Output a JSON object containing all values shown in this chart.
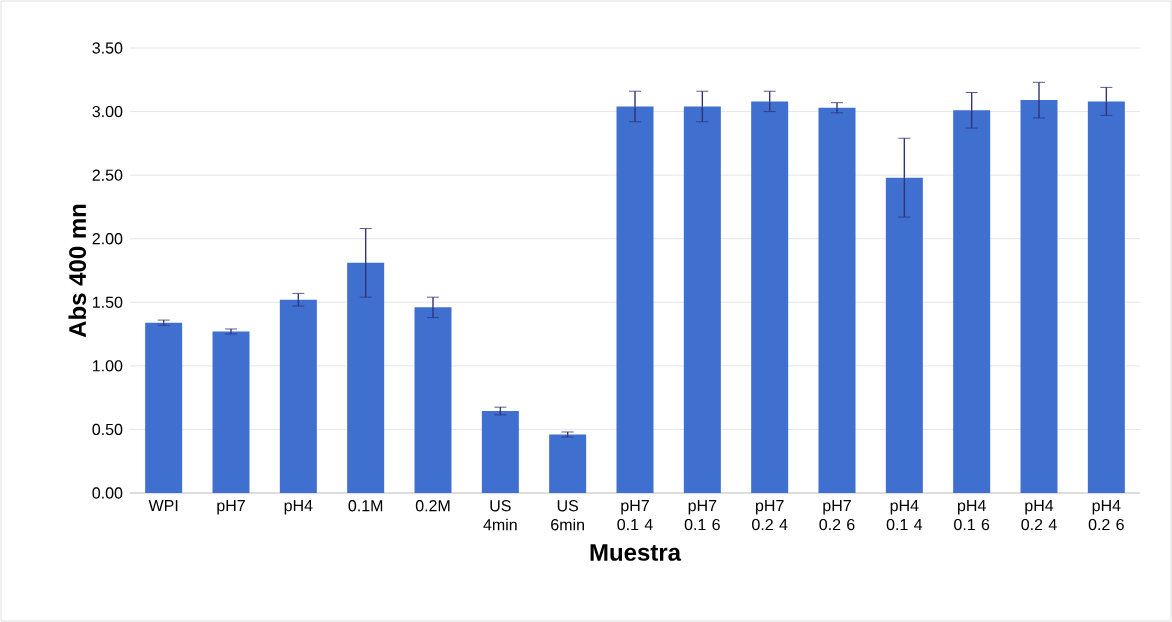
{
  "chart_data": {
    "type": "bar",
    "xlabel": "Muestra",
    "ylabel": "Abs 400 mn",
    "categories": [
      "WPI",
      "pH7",
      "pH4",
      "0.1M",
      "0.2M",
      "US 4min",
      "US 6min",
      "pH7 0.1 4",
      "pH7 0.1 6",
      "pH7 0.2 4",
      "pH7 0.2 6",
      "pH4 0.1 4",
      "pH4 0.1 6",
      "pH4 0.2 4",
      "pH4 0.2 6"
    ],
    "values": [
      1.34,
      1.27,
      1.52,
      1.81,
      1.46,
      0.645,
      0.46,
      3.04,
      3.04,
      3.08,
      3.03,
      2.48,
      3.01,
      3.09,
      3.08
    ],
    "errors": [
      0.02,
      0.02,
      0.05,
      0.27,
      0.08,
      0.03,
      0.02,
      0.12,
      0.12,
      0.08,
      0.04,
      0.31,
      0.14,
      0.14,
      0.11
    ],
    "color": "#3f6fcf",
    "ylim": [
      0,
      3.5
    ],
    "yticks": [
      {
        "value": 0,
        "label": "0.00"
      },
      {
        "value": 0.5,
        "label": "0.50"
      },
      {
        "value": 1,
        "label": "1.00"
      },
      {
        "value": 1.5,
        "label": "1.50"
      },
      {
        "value": 2,
        "label": "2.00"
      },
      {
        "value": 2.5,
        "label": "2.50"
      },
      {
        "value": 3,
        "label": "3.00"
      },
      {
        "value": 3.5,
        "label": "3.50"
      }
    ],
    "grid": "y"
  }
}
